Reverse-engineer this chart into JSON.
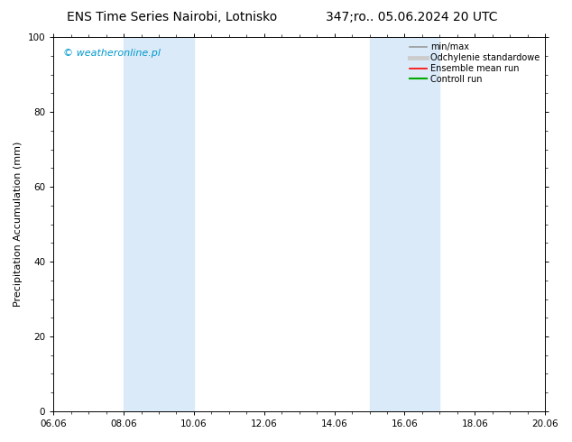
{
  "title_left": "ENS Time Series Nairobi, Lotnisko",
  "title_right": "347;ro.. 05.06.2024 20 UTC",
  "ylabel": "Precipitation Accumulation (mm)",
  "watermark": "© weatheronline.pl",
  "watermark_color": "#0099cc",
  "xtick_labels": [
    "06.06",
    "08.06",
    "10.06",
    "12.06",
    "14.06",
    "16.06",
    "18.06",
    "20.06"
  ],
  "xtick_positions": [
    0,
    2,
    4,
    6,
    8,
    10,
    12,
    14
  ],
  "ylim": [
    0,
    100
  ],
  "ytick_labels": [
    "0",
    "20",
    "40",
    "60",
    "80",
    "100"
  ],
  "ytick_positions": [
    0,
    20,
    40,
    60,
    80,
    100
  ],
  "bg_color": "#ffffff",
  "plot_bg_color": "#ffffff",
  "shaded_bands": [
    {
      "x_start": 2.0,
      "x_end": 4.0
    },
    {
      "x_start": 9.0,
      "x_end": 11.0
    }
  ],
  "shade_color": "#daeaf8",
  "legend_entries": [
    {
      "label": "min/max",
      "color": "#999999",
      "lw": 1.2
    },
    {
      "label": "Odchylenie standardowe",
      "color": "#cccccc",
      "lw": 3.5
    },
    {
      "label": "Ensemble mean run",
      "color": "#ff0000",
      "lw": 1.2
    },
    {
      "label": "Controll run",
      "color": "#00aa00",
      "lw": 1.5
    }
  ],
  "title_fontsize": 10,
  "axis_label_fontsize": 8,
  "tick_fontsize": 7.5,
  "legend_fontsize": 7,
  "watermark_fontsize": 8
}
